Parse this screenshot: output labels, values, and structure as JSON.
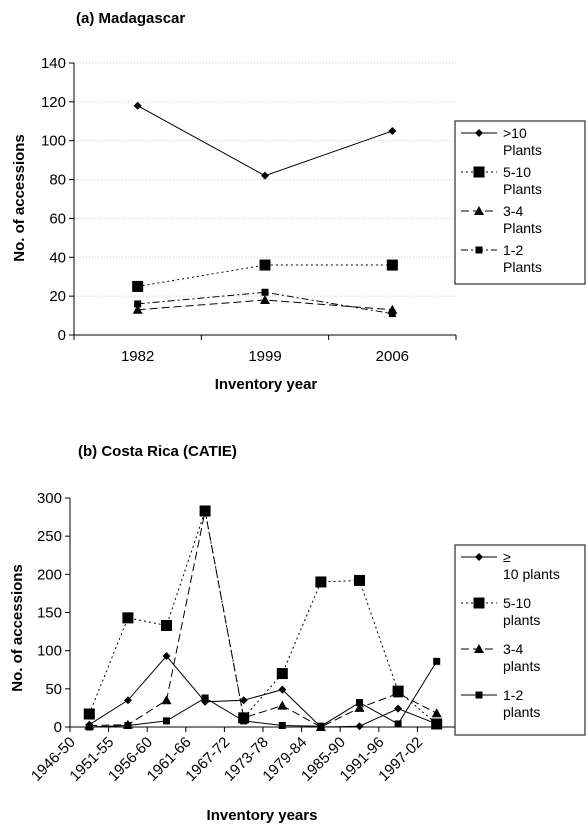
{
  "chart_data": [
    {
      "type": "line",
      "title": "(a) Madagascar",
      "xlabel": "Inventory year",
      "ylabel": "No. of accessions",
      "categories": [
        "1982",
        "1999",
        "2006"
      ],
      "ylim": [
        0,
        140
      ],
      "yticks": [
        "0",
        "20",
        "40",
        "60",
        "80",
        "100",
        "120",
        "140"
      ],
      "grid": true,
      "legend_placement": "right",
      "series": [
        {
          "name": ">10 Plants",
          "values": [
            118,
            82,
            105
          ],
          "marker": "diamond",
          "dash": "solid"
        },
        {
          "name": "5-10 Plants",
          "values": [
            25,
            36,
            36
          ],
          "marker": "square",
          "dash": "dotted"
        },
        {
          "name": "3-4 Plants",
          "values": [
            13,
            18,
            13
          ],
          "marker": "triangle",
          "dash": "dashed"
        },
        {
          "name": "1-2 Plants",
          "values": [
            16,
            22,
            11
          ],
          "marker": "smallsquare",
          "dash": "dashdot"
        }
      ]
    },
    {
      "type": "line",
      "title": "(b) Costa Rica (CATIE)",
      "xlabel": "Inventory years",
      "ylabel": "No. of accessions",
      "categories": [
        "1946-50",
        "1951-55",
        "1956-60",
        "1961-66",
        "1967-72",
        "1973-78",
        "1979-84",
        "1985-90",
        "1991-96",
        "1997-02"
      ],
      "ylim": [
        0,
        300
      ],
      "yticks": [
        "0",
        "50",
        "100",
        "150",
        "200",
        "250",
        "300"
      ],
      "grid": false,
      "legend_placement": "right",
      "series": [
        {
          "name": "≥ 10 plants",
          "values": [
            3,
            35,
            93,
            33,
            35,
            49,
            0,
            1,
            24,
            4
          ],
          "marker": "diamond",
          "dash": "solid"
        },
        {
          "name": "5-10 plants",
          "values": [
            17,
            143,
            133,
            283,
            12,
            70,
            190,
            192,
            47,
            4
          ],
          "marker": "square",
          "dash": "dotted"
        },
        {
          "name": "3-4 plants",
          "values": [
            2,
            3,
            35,
            283,
            12,
            28,
            0,
            25,
            44,
            18
          ],
          "marker": "triangle",
          "dash": "dashed"
        },
        {
          "name": "1-2 plants",
          "values": [
            0,
            2,
            8,
            38,
            8,
            2,
            1,
            32,
            4,
            86
          ],
          "marker": "smallsquare",
          "dash": "solid"
        }
      ]
    }
  ]
}
